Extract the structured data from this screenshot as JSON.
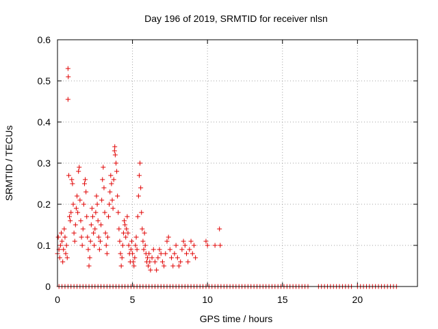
{
  "chart_data": {
    "type": "scatter",
    "title": "Day 196 of 2019, SRMTID for receiver nlsn",
    "xlabel": "GPS time / hours",
    "ylabel": "SRMTID / TECUs",
    "xlim": [
      0,
      24
    ],
    "ylim": [
      0,
      0.6
    ],
    "x_ticks": [
      0,
      5,
      10,
      15,
      20
    ],
    "x_tick_labels": [
      "0",
      "5",
      "10",
      "15",
      "20"
    ],
    "y_ticks": [
      0,
      0.1,
      0.2,
      0.3,
      0.4,
      0.5,
      0.6
    ],
    "y_tick_labels": [
      "0",
      "0.1",
      "0.2",
      "0.3",
      "0.4",
      "0.5",
      "0.6"
    ],
    "grid": true,
    "marker": "+",
    "series_color": "#e00000",
    "series": [
      {
        "name": "SRMTID",
        "points": [
          [
            0.0,
            0.08
          ],
          [
            0.05,
            0.12
          ],
          [
            0.1,
            0.09
          ],
          [
            0.15,
            0.07
          ],
          [
            0.2,
            0.1
          ],
          [
            0.25,
            0.13
          ],
          [
            0.3,
            0.11
          ],
          [
            0.35,
            0.06
          ],
          [
            0.4,
            0.09
          ],
          [
            0.45,
            0.14
          ],
          [
            0.5,
            0.12
          ],
          [
            0.55,
            0.08
          ],
          [
            0.6,
            0.1
          ],
          [
            0.65,
            0.07
          ],
          [
            0.7,
            0.53
          ],
          [
            0.72,
            0.51
          ],
          [
            0.7,
            0.455
          ],
          [
            0.75,
            0.27
          ],
          [
            0.8,
            0.17
          ],
          [
            0.85,
            0.16
          ],
          [
            0.9,
            0.18
          ],
          [
            0.95,
            0.26
          ],
          [
            1.0,
            0.25
          ],
          [
            1.05,
            0.2
          ],
          [
            1.1,
            0.13
          ],
          [
            1.15,
            0.11
          ],
          [
            1.2,
            0.15
          ],
          [
            1.25,
            0.19
          ],
          [
            1.3,
            0.22
          ],
          [
            1.35,
            0.18
          ],
          [
            1.4,
            0.28
          ],
          [
            1.45,
            0.29
          ],
          [
            1.5,
            0.21
          ],
          [
            1.55,
            0.16
          ],
          [
            1.6,
            0.12
          ],
          [
            1.65,
            0.1
          ],
          [
            1.7,
            0.14
          ],
          [
            1.75,
            0.2
          ],
          [
            1.8,
            0.25
          ],
          [
            1.85,
            0.26
          ],
          [
            1.9,
            0.23
          ],
          [
            1.95,
            0.17
          ],
          [
            2.0,
            0.12
          ],
          [
            2.05,
            0.09
          ],
          [
            2.1,
            0.05
          ],
          [
            2.15,
            0.07
          ],
          [
            2.2,
            0.11
          ],
          [
            2.25,
            0.15
          ],
          [
            2.3,
            0.19
          ],
          [
            2.35,
            0.17
          ],
          [
            2.4,
            0.13
          ],
          [
            2.45,
            0.1
          ],
          [
            2.5,
            0.14
          ],
          [
            2.55,
            0.18
          ],
          [
            2.6,
            0.22
          ],
          [
            2.65,
            0.2
          ],
          [
            2.7,
            0.16
          ],
          [
            2.75,
            0.12
          ],
          [
            2.8,
            0.09
          ],
          [
            2.85,
            0.11
          ],
          [
            2.9,
            0.15
          ],
          [
            2.95,
            0.21
          ],
          [
            3.0,
            0.26
          ],
          [
            3.05,
            0.29
          ],
          [
            3.1,
            0.24
          ],
          [
            3.15,
            0.18
          ],
          [
            3.2,
            0.13
          ],
          [
            3.25,
            0.1
          ],
          [
            3.3,
            0.08
          ],
          [
            3.35,
            0.12
          ],
          [
            3.4,
            0.17
          ],
          [
            3.45,
            0.2
          ],
          [
            3.5,
            0.23
          ],
          [
            3.55,
            0.27
          ],
          [
            3.6,
            0.25
          ],
          [
            3.65,
            0.21
          ],
          [
            3.7,
            0.19
          ],
          [
            3.75,
            0.26
          ],
          [
            3.8,
            0.33
          ],
          [
            3.82,
            0.34
          ],
          [
            3.85,
            0.32
          ],
          [
            3.9,
            0.3
          ],
          [
            3.95,
            0.28
          ],
          [
            4.0,
            0.22
          ],
          [
            4.05,
            0.18
          ],
          [
            4.1,
            0.14
          ],
          [
            4.15,
            0.11
          ],
          [
            4.2,
            0.08
          ],
          [
            4.25,
            0.05
          ],
          [
            4.3,
            0.07
          ],
          [
            4.35,
            0.1
          ],
          [
            4.4,
            0.13
          ],
          [
            4.45,
            0.16
          ],
          [
            4.5,
            0.15
          ],
          [
            4.55,
            0.12
          ],
          [
            4.6,
            0.14
          ],
          [
            4.65,
            0.17
          ],
          [
            4.7,
            0.13
          ],
          [
            4.75,
            0.1
          ],
          [
            4.8,
            0.08
          ],
          [
            4.85,
            0.06
          ],
          [
            4.9,
            0.09
          ],
          [
            4.95,
            0.11
          ],
          [
            5.0,
            0.08
          ],
          [
            5.05,
            0.06
          ],
          [
            5.1,
            0.05
          ],
          [
            5.15,
            0.07
          ],
          [
            5.2,
            0.1
          ],
          [
            5.25,
            0.12
          ],
          [
            5.3,
            0.09
          ],
          [
            5.35,
            0.17
          ],
          [
            5.4,
            0.22
          ],
          [
            5.45,
            0.27
          ],
          [
            5.5,
            0.3
          ],
          [
            5.55,
            0.24
          ],
          [
            5.6,
            0.18
          ],
          [
            5.65,
            0.14
          ],
          [
            5.7,
            0.11
          ],
          [
            5.75,
            0.09
          ],
          [
            5.8,
            0.13
          ],
          [
            5.85,
            0.1
          ],
          [
            5.9,
            0.08
          ],
          [
            5.95,
            0.06
          ],
          [
            6.0,
            0.07
          ],
          [
            6.05,
            0.05
          ],
          [
            6.1,
            0.08
          ],
          [
            6.15,
            0.06
          ],
          [
            6.2,
            0.04
          ],
          [
            6.3,
            0.07
          ],
          [
            6.4,
            0.09
          ],
          [
            6.5,
            0.06
          ],
          [
            6.6,
            0.04
          ],
          [
            6.7,
            0.07
          ],
          [
            6.8,
            0.09
          ],
          [
            6.9,
            0.08
          ],
          [
            7.0,
            0.06
          ],
          [
            7.1,
            0.05
          ],
          [
            7.2,
            0.08
          ],
          [
            7.3,
            0.11
          ],
          [
            7.4,
            0.12
          ],
          [
            7.5,
            0.09
          ],
          [
            7.6,
            0.07
          ],
          [
            7.7,
            0.05
          ],
          [
            7.8,
            0.08
          ],
          [
            7.9,
            0.1
          ],
          [
            8.0,
            0.07
          ],
          [
            8.1,
            0.05
          ],
          [
            8.2,
            0.06
          ],
          [
            8.3,
            0.09
          ],
          [
            8.4,
            0.11
          ],
          [
            8.5,
            0.1
          ],
          [
            8.6,
            0.08
          ],
          [
            8.7,
            0.06
          ],
          [
            8.8,
            0.09
          ],
          [
            8.9,
            0.11
          ],
          [
            9.0,
            0.08
          ],
          [
            9.1,
            0.1
          ],
          [
            9.2,
            0.07
          ],
          [
            9.9,
            0.11
          ],
          [
            10.0,
            0.1
          ],
          [
            10.5,
            0.1
          ],
          [
            10.8,
            0.14
          ],
          [
            10.85,
            0.1
          ]
        ],
        "zeros_x": [
          0.1,
          0.3,
          0.5,
          0.7,
          0.9,
          1.1,
          1.3,
          1.5,
          1.7,
          1.9,
          2.1,
          2.3,
          2.5,
          2.7,
          2.9,
          3.1,
          3.3,
          3.5,
          3.7,
          3.9,
          4.1,
          4.3,
          4.5,
          4.7,
          4.9,
          5.1,
          5.3,
          5.5,
          5.7,
          5.9,
          6.1,
          6.3,
          6.5,
          6.7,
          6.9,
          7.1,
          7.3,
          7.5,
          7.7,
          7.9,
          8.1,
          8.3,
          8.5,
          8.7,
          8.9,
          9.1,
          9.3,
          9.5,
          9.7,
          9.9,
          10.1,
          10.3,
          10.5,
          10.7,
          10.9,
          11.1,
          11.3,
          11.5,
          11.7,
          11.9,
          12.1,
          12.3,
          12.5,
          12.7,
          12.9,
          13.1,
          13.3,
          13.5,
          13.7,
          13.9,
          14.1,
          14.3,
          14.5,
          14.7,
          14.9,
          15.1,
          15.3,
          15.5,
          15.7,
          15.9,
          16.1,
          16.3,
          16.5,
          16.7,
          17.4,
          17.6,
          17.8,
          18.0,
          18.2,
          18.4,
          18.6,
          18.8,
          19.0,
          19.2,
          19.4,
          19.6,
          20.0,
          20.2,
          20.4,
          20.6,
          20.8,
          21.0,
          21.2,
          21.4,
          21.6,
          21.8,
          22.0,
          22.2,
          22.4,
          22.6
        ]
      }
    ]
  }
}
